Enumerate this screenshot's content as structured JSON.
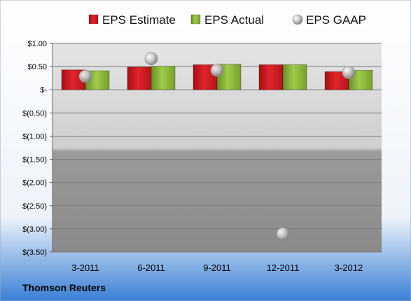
{
  "chart_data": {
    "type": "bar",
    "categories": [
      "3-2011",
      "6-2011",
      "9-2011",
      "12-2011",
      "3-2012"
    ],
    "series": [
      {
        "name": "EPS Estimate",
        "kind": "bar",
        "color": "#d4141b",
        "values": [
          0.43,
          0.49,
          0.54,
          0.54,
          0.39
        ]
      },
      {
        "name": "EPS Actual",
        "kind": "bar",
        "color": "#8cb83a",
        "values": [
          0.41,
          0.51,
          0.55,
          0.54,
          0.42
        ]
      },
      {
        "name": "EPS GAAP",
        "kind": "marker",
        "color": "#b0b0b0",
        "values": [
          0.29,
          0.67,
          0.42,
          -3.11,
          0.37
        ]
      }
    ],
    "ylim": [
      -3.5,
      1.0
    ],
    "yticks": [
      1.0,
      0.5,
      0.0,
      -0.5,
      -1.0,
      -1.5,
      -2.0,
      -2.5,
      -3.0,
      -3.5
    ],
    "ytick_labels": [
      "$1.00",
      "$0.50",
      "$-",
      "$(0.50)",
      "$(1.00)",
      "$(1.50)",
      "$(2.00)",
      "$(2.50)",
      "$(3.00)",
      "$(3.50)"
    ],
    "grid": true,
    "legend_position": "top"
  },
  "source_label": "Thomson Reuters",
  "colors": {
    "background_top": "#ffffff",
    "background_bottom": "#3a7fd5",
    "plot_top": "#e2e2e2",
    "plot_bottom": "#8e8e8e"
  }
}
